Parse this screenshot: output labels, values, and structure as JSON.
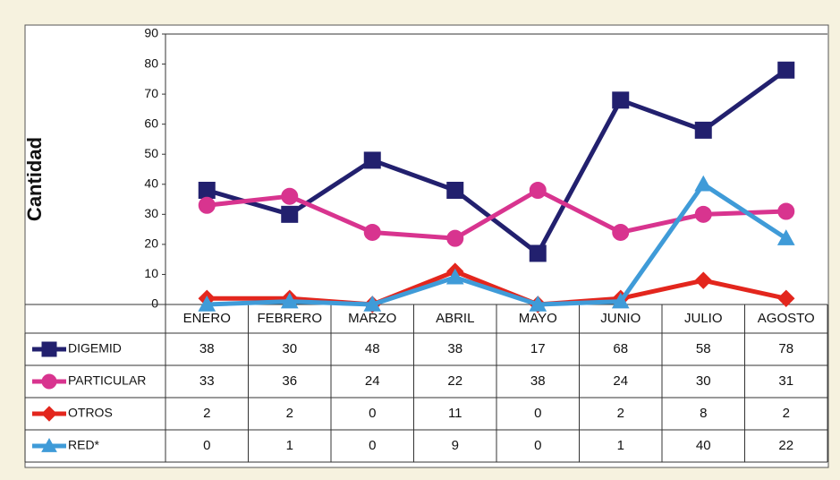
{
  "chart_data": {
    "type": "line",
    "ylabel": "Cantidad",
    "categories": [
      "ENERO",
      "FEBRERO",
      "MARZO",
      "ABRIL",
      "MAYO",
      "JUNIO",
      "JULIO",
      "AGOSTO"
    ],
    "ylim": [
      0,
      90
    ],
    "yticks": [
      0,
      10,
      20,
      30,
      40,
      50,
      60,
      70,
      80,
      90
    ],
    "series": [
      {
        "name": "DIGEMID",
        "color": "#22206e",
        "marker": "square",
        "values": [
          38,
          30,
          48,
          38,
          17,
          68,
          58,
          78
        ]
      },
      {
        "name": "PARTICULAR",
        "color": "#d8348f",
        "marker": "circle",
        "values": [
          33,
          36,
          24,
          22,
          38,
          24,
          30,
          31
        ]
      },
      {
        "name": "OTROS",
        "color": "#e3261d",
        "marker": "diamond",
        "values": [
          2,
          2,
          0,
          11,
          0,
          2,
          8,
          2
        ]
      },
      {
        "name": "RED*",
        "color": "#3f9bd8",
        "marker": "triangle",
        "values": [
          0,
          1,
          0,
          9,
          0,
          1,
          40,
          22
        ]
      }
    ]
  }
}
